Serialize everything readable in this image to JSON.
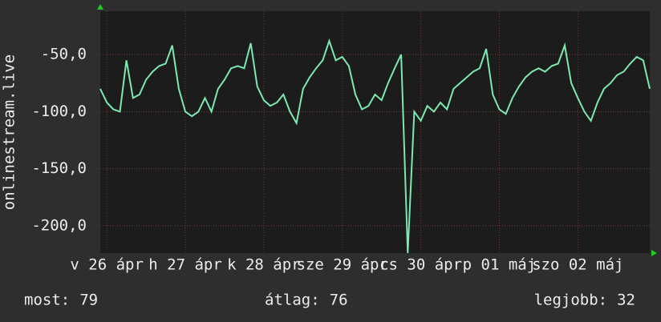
{
  "chart_data": {
    "type": "line",
    "y_label": "onlinestream.live",
    "x": [
      0,
      2,
      4,
      6,
      8,
      10,
      12,
      14,
      16,
      18,
      20,
      22,
      24,
      26,
      28,
      30,
      32,
      34,
      36,
      38,
      40,
      42,
      44,
      46,
      48,
      50,
      52,
      54,
      56,
      58,
      60,
      62,
      64,
      66,
      68,
      70,
      72,
      74,
      76,
      78,
      80,
      82,
      84,
      86,
      88,
      90,
      92,
      94,
      96,
      98,
      100,
      102,
      104,
      106,
      108,
      110,
      112,
      114,
      116,
      118,
      120,
      122,
      124,
      126,
      128,
      130,
      132,
      134,
      136,
      138,
      140,
      142,
      144,
      146,
      148,
      150,
      152,
      154,
      156,
      158,
      160,
      162,
      164,
      166,
      168
    ],
    "series": [
      {
        "color": "#7de8b0",
        "values": [
          -80,
          -92,
          -98,
          -100,
          -55,
          -88,
          -85,
          -72,
          -65,
          -60,
          -58,
          -42,
          -80,
          -100,
          -104,
          -100,
          -88,
          -100,
          -80,
          -72,
          -62,
          -60,
          -62,
          -40,
          -78,
          -90,
          -95,
          -92,
          -85,
          -100,
          -110,
          -80,
          -70,
          -62,
          -55,
          -38,
          -55,
          -52,
          -60,
          -85,
          -98,
          -95,
          -85,
          -90,
          -75,
          -62,
          -50,
          -224,
          -100,
          -108,
          -95,
          -100,
          -92,
          -98,
          -80,
          -75,
          -70,
          -65,
          -62,
          -45,
          -85,
          -98,
          -102,
          -88,
          -78,
          -70,
          -65,
          -62,
          -65,
          -60,
          -58,
          -42,
          -75,
          -88,
          -100,
          -108,
          -92,
          -80,
          -75,
          -68,
          -65,
          -58,
          -52,
          -55,
          -80
        ]
      }
    ],
    "xlim": [
      0,
      168
    ],
    "xticks": [
      {
        "value": 2,
        "label": "v 26 ápr"
      },
      {
        "value": 26,
        "label": "h 27 ápr"
      },
      {
        "value": 50,
        "label": "k 28 ápr"
      },
      {
        "value": 74,
        "label": "sze 29 ápr"
      },
      {
        "value": 98,
        "label": "cs 30 ápr"
      },
      {
        "value": 122,
        "label": "p 01 máj"
      },
      {
        "value": 146,
        "label": "szo 02 máj"
      }
    ],
    "ylim": [
      -224,
      -12
    ],
    "yticks": [
      {
        "value": -50,
        "label": "-50,0"
      },
      {
        "value": -100,
        "label": "-100,0"
      },
      {
        "value": -150,
        "label": "-150,0"
      },
      {
        "value": -200,
        "label": "-200,0"
      }
    ],
    "grid": true,
    "footer": [
      {
        "label": "most:",
        "value": 79
      },
      {
        "label": "átlag:",
        "value": 76
      },
      {
        "label": "legjobb:",
        "value": 32
      }
    ]
  }
}
